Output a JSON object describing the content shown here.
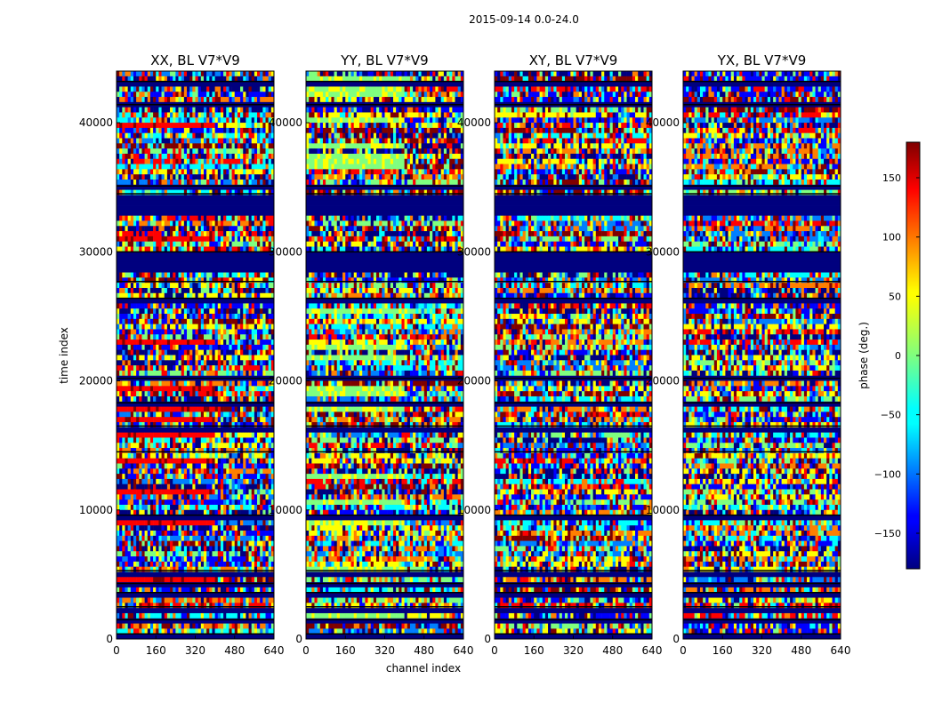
{
  "chart_data": {
    "type": "heatmap",
    "title": "2015-09-14 0.0-24.0",
    "xlabel": "channel index",
    "ylabel": "time index",
    "xlim": [
      0,
      640
    ],
    "ylim": [
      0,
      44000
    ],
    "xticks": [
      0,
      160,
      320,
      480,
      640
    ],
    "yticks": [
      0,
      10000,
      20000,
      30000,
      40000
    ],
    "xtick_labels": [
      "0",
      "160",
      "320",
      "480",
      "640"
    ],
    "ytick_labels": [
      "0",
      "10000",
      "20000",
      "30000",
      "40000"
    ],
    "panels": [
      {
        "title": "XX, BL V7*V9"
      },
      {
        "title": "YY, BL V7*V9"
      },
      {
        "title": "XY, BL V7*V9"
      },
      {
        "title": "YX, BL V7*V9"
      }
    ],
    "colorbar": {
      "label": "phase (deg.)",
      "range": [
        -180,
        180
      ],
      "ticks": [
        -150,
        -100,
        -50,
        0,
        50,
        100,
        150
      ],
      "tick_labels": [
        "−150",
        "−100",
        "−50",
        "0",
        "50",
        "100",
        "150"
      ],
      "colormap": "jet"
    },
    "flagged_time_bands": [
      [
        0,
        400
      ],
      [
        1200,
        1500
      ],
      [
        2200,
        2500
      ],
      [
        3400,
        3600
      ],
      [
        4100,
        4300
      ],
      [
        4800,
        5300
      ],
      [
        9300,
        9600
      ],
      [
        14300,
        14500
      ],
      [
        16200,
        16500
      ],
      [
        18100,
        18300
      ],
      [
        20000,
        20200
      ],
      [
        26200,
        26400
      ],
      [
        27500,
        27700
      ],
      [
        28300,
        30000
      ],
      [
        32700,
        34500
      ],
      [
        34800,
        35100
      ],
      [
        41200,
        41400
      ],
      [
        43000,
        43200
      ]
    ]
  },
  "colors": {
    "flagged": "#00007f",
    "jet": [
      "#00007f",
      "#0000ff",
      "#007fff",
      "#00ffff",
      "#7fff7f",
      "#ffff00",
      "#ff7f00",
      "#ff0000",
      "#7f0000"
    ]
  }
}
